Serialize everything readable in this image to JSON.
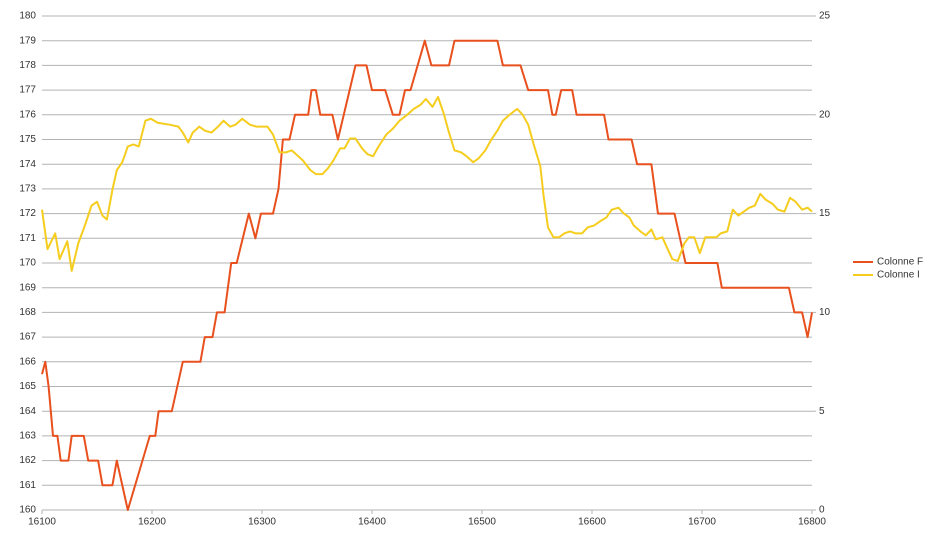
{
  "chart_data": {
    "type": "line",
    "xlim": [
      16100,
      16800
    ],
    "xticks": [
      16100,
      16200,
      16300,
      16400,
      16500,
      16600,
      16700,
      16800
    ],
    "ylim": [
      160,
      180
    ],
    "yticks": [
      160,
      161,
      162,
      163,
      164,
      165,
      166,
      167,
      168,
      169,
      170,
      171,
      172,
      173,
      174,
      175,
      176,
      177,
      178,
      179,
      180
    ],
    "y2lim": [
      0,
      25
    ],
    "y2ticks": [
      0,
      5,
      10,
      15,
      20,
      25
    ],
    "grid": true,
    "legend": "right",
    "series": [
      {
        "name": "Colonne F",
        "color": "#e8501e",
        "x": [
          16100,
          16103,
          16106,
          16110,
          16114,
          16117,
          16124,
          16127,
          16138,
          16142,
          16151,
          16155,
          16164,
          16168,
          16178,
          16198,
          16203,
          16206,
          16218,
          16228,
          16244,
          16248,
          16255,
          16259,
          16266,
          16272,
          16277,
          16288,
          16294,
          16299,
          16310,
          16315,
          16319,
          16325,
          16330,
          16342,
          16345,
          16349,
          16353,
          16364,
          16369,
          16385,
          16395,
          16400,
          16412,
          16419,
          16425,
          16430,
          16435,
          16448,
          16454,
          16470,
          16475,
          16514,
          16519,
          16535,
          16542,
          16560,
          16564,
          16567,
          16572,
          16582,
          16586,
          16611,
          16615,
          16636,
          16641,
          16654,
          16660,
          16675,
          16680,
          16685,
          16714,
          16718,
          16779,
          16784,
          16791,
          16796,
          16800
        ],
        "values": [
          165.5,
          166,
          165,
          163,
          163,
          162,
          162,
          163,
          163,
          162,
          162,
          161,
          161,
          162,
          160,
          163,
          163,
          164,
          164,
          166,
          166,
          167,
          167,
          168,
          168,
          170,
          170,
          172,
          171,
          172,
          172,
          173,
          175,
          175,
          176,
          176,
          177,
          177,
          176,
          176,
          175,
          178,
          178,
          177,
          177,
          176,
          176,
          177,
          177,
          179,
          178,
          178,
          179,
          179,
          178,
          178,
          177,
          177,
          176,
          176,
          177,
          177,
          176,
          176,
          175,
          175,
          174,
          174,
          172,
          172,
          171,
          170,
          170,
          169,
          169,
          168,
          168,
          167,
          168
        ]
      },
      {
        "name": "Colonne I",
        "color": "#f5cd1e",
        "axis": "y2",
        "x": [
          16100,
          16105,
          16112,
          16116,
          16123,
          16127,
          16133,
          16139,
          16145,
          16150,
          16155,
          16159,
          16164,
          16168,
          16173,
          16178,
          16183,
          16188,
          16194,
          16199,
          16205,
          16216,
          16224,
          16228,
          16233,
          16237,
          16243,
          16248,
          16254,
          16260,
          16265,
          16271,
          16276,
          16282,
          16289,
          16295,
          16305,
          16310,
          16316,
          16322,
          16327,
          16333,
          16337,
          16344,
          16349,
          16355,
          16360,
          16365,
          16371,
          16375,
          16380,
          16385,
          16391,
          16396,
          16401,
          16406,
          16413,
          16419,
          16425,
          16432,
          16438,
          16444,
          16449,
          16455,
          16460,
          16465,
          16470,
          16475,
          16481,
          16486,
          16492,
          16497,
          16503,
          16508,
          16514,
          16519,
          16525,
          16532,
          16537,
          16542,
          16547,
          16553,
          16556,
          16560,
          16565,
          16570,
          16575,
          16580,
          16585,
          16591,
          16596,
          16602,
          16607,
          16613,
          16618,
          16624,
          16629,
          16634,
          16638,
          16644,
          16649,
          16654,
          16658,
          16664,
          16668,
          16673,
          16678,
          16684,
          16688,
          16693,
          16698,
          16703,
          16707,
          16713,
          16717,
          16723,
          16728,
          16733,
          16738,
          16743,
          16748,
          16753,
          16758,
          16764,
          16769,
          16775,
          16780,
          16785,
          16791,
          16796,
          16800
        ],
        "values": [
          15.2,
          13.2,
          14.0,
          12.7,
          13.6,
          12.1,
          13.5,
          14.4,
          15.4,
          15.6,
          14.9,
          14.7,
          16.2,
          17.2,
          17.6,
          18.4,
          18.5,
          18.4,
          19.7,
          19.8,
          19.6,
          19.5,
          19.4,
          19.1,
          18.6,
          19.1,
          19.4,
          19.2,
          19.1,
          19.4,
          19.7,
          19.4,
          19.5,
          19.8,
          19.5,
          19.4,
          19.4,
          19.0,
          18.1,
          18.1,
          18.2,
          17.9,
          17.7,
          17.2,
          17.0,
          17.0,
          17.3,
          17.7,
          18.3,
          18.3,
          18.8,
          18.8,
          18.3,
          18.0,
          17.9,
          18.4,
          19.0,
          19.3,
          19.7,
          20.0,
          20.3,
          20.5,
          20.8,
          20.4,
          20.9,
          20.1,
          19.1,
          18.2,
          18.1,
          17.9,
          17.6,
          17.8,
          18.2,
          18.7,
          19.2,
          19.7,
          20.0,
          20.3,
          20.0,
          19.5,
          18.5,
          17.4,
          15.9,
          14.3,
          13.8,
          13.8,
          14.0,
          14.1,
          14.0,
          14.0,
          14.3,
          14.4,
          14.6,
          14.8,
          15.2,
          15.3,
          15.0,
          14.8,
          14.4,
          14.1,
          13.9,
          14.2,
          13.7,
          13.8,
          13.3,
          12.7,
          12.6,
          13.5,
          13.8,
          13.8,
          13.0,
          13.8,
          13.8,
          13.8,
          14.0,
          14.1,
          15.2,
          14.9,
          15.1,
          15.3,
          15.4,
          16.0,
          15.7,
          15.5,
          15.2,
          15.1,
          15.8,
          15.6,
          15.2,
          15.3,
          15.1
        ]
      }
    ]
  }
}
